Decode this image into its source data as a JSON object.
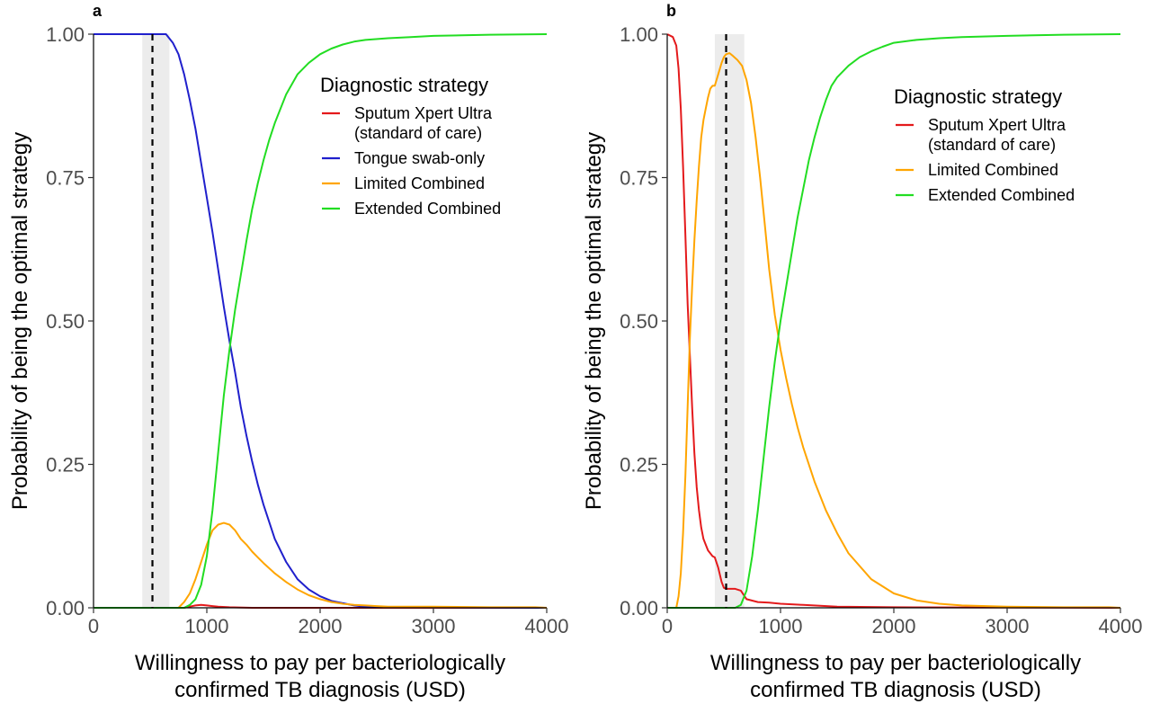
{
  "chart_data": [
    {
      "panel_label": "a",
      "type": "line",
      "xlabel": [
        "Willingness to pay per bacteriologically",
        "confirmed TB diagnosis (USD)"
      ],
      "ylabel": "Probability of being the optimal strategy",
      "xlim": [
        0,
        4000
      ],
      "ylim": [
        0,
        1
      ],
      "xticks": [
        0,
        1000,
        2000,
        3000,
        4000
      ],
      "yticks": [
        0,
        0.25,
        0.5,
        0.75,
        1
      ],
      "xtick_labels": [
        "0",
        "1000",
        "2000",
        "3000",
        "4000"
      ],
      "ytick_labels": [
        "0.00",
        "0.25",
        "0.50",
        "0.75",
        "1.00"
      ],
      "grid": false,
      "legend_title": "Diagnostic strategy",
      "legend_position": "right",
      "reference_line": 520,
      "shaded_band": [
        430,
        670
      ],
      "series": [
        {
          "name": "Sputum Xpert Ultra\n(standard of care)",
          "color": "#e41a1c",
          "x": [
            0,
            800,
            850,
            900,
            950,
            1000,
            1050,
            1100,
            1200,
            1400,
            4000
          ],
          "y": [
            0,
            0,
            0.002,
            0.004,
            0.005,
            0.004,
            0.003,
            0.002,
            0.001,
            0,
            0
          ]
        },
        {
          "name": "Tongue swab-only",
          "color": "#2020cc",
          "x": [
            0,
            520,
            640,
            700,
            750,
            800,
            850,
            900,
            950,
            1000,
            1050,
            1100,
            1150,
            1200,
            1250,
            1300,
            1350,
            1400,
            1450,
            1500,
            1550,
            1600,
            1700,
            1800,
            1900,
            2000,
            2100,
            2200,
            2300,
            2400,
            2500,
            4000
          ],
          "y": [
            1,
            1,
            1,
            0.985,
            0.965,
            0.93,
            0.885,
            0.835,
            0.775,
            0.715,
            0.655,
            0.59,
            0.525,
            0.465,
            0.41,
            0.35,
            0.3,
            0.255,
            0.215,
            0.18,
            0.15,
            0.12,
            0.08,
            0.05,
            0.032,
            0.02,
            0.012,
            0.008,
            0.004,
            0.002,
            0.001,
            0
          ]
        },
        {
          "name": "Limited Combined",
          "color": "#ffa500",
          "x": [
            0,
            750,
            800,
            850,
            900,
            950,
            1000,
            1050,
            1100,
            1150,
            1200,
            1250,
            1300,
            1350,
            1400,
            1450,
            1500,
            1600,
            1700,
            1800,
            1900,
            2000,
            2100,
            2200,
            2300,
            2400,
            2500,
            2600,
            3000,
            3500,
            3900,
            4000
          ],
          "y": [
            0,
            0,
            0.01,
            0.025,
            0.05,
            0.08,
            0.11,
            0.135,
            0.145,
            0.148,
            0.145,
            0.135,
            0.12,
            0.11,
            0.098,
            0.088,
            0.078,
            0.06,
            0.045,
            0.032,
            0.022,
            0.015,
            0.01,
            0.007,
            0.005,
            0.004,
            0.003,
            0.002,
            0.002,
            0.001,
            0.001,
            0
          ]
        },
        {
          "name": "Extended Combined",
          "color": "#22dd22",
          "x": [
            0,
            800,
            850,
            900,
            950,
            1000,
            1050,
            1100,
            1150,
            1200,
            1250,
            1300,
            1350,
            1400,
            1450,
            1500,
            1550,
            1600,
            1700,
            1800,
            1900,
            2000,
            2100,
            2200,
            2300,
            2400,
            2600,
            2800,
            3000,
            3500,
            4000
          ],
          "y": [
            0,
            0,
            0.005,
            0.015,
            0.04,
            0.09,
            0.17,
            0.27,
            0.37,
            0.45,
            0.52,
            0.58,
            0.64,
            0.695,
            0.74,
            0.78,
            0.815,
            0.845,
            0.895,
            0.93,
            0.95,
            0.965,
            0.975,
            0.982,
            0.987,
            0.99,
            0.993,
            0.995,
            0.997,
            0.999,
            1
          ]
        }
      ]
    },
    {
      "panel_label": "b",
      "type": "line",
      "xlabel": [
        "Willingness to pay per bacteriologically",
        "confirmed TB diagnosis (USD)"
      ],
      "ylabel": "Probability of being the optimal strategy",
      "xlim": [
        0,
        4000
      ],
      "ylim": [
        0,
        1
      ],
      "xticks": [
        0,
        1000,
        2000,
        3000,
        4000
      ],
      "yticks": [
        0,
        0.25,
        0.5,
        0.75,
        1
      ],
      "xtick_labels": [
        "0",
        "1000",
        "2000",
        "3000",
        "4000"
      ],
      "ytick_labels": [
        "0.00",
        "0.25",
        "0.50",
        "0.75",
        "1.00"
      ],
      "grid": false,
      "legend_title": "Diagnostic strategy",
      "legend_position": "right",
      "reference_line": 520,
      "shaded_band": [
        420,
        680
      ],
      "series": [
        {
          "name": "Sputum Xpert Ultra\n(standard of care)",
          "color": "#e41a1c",
          "x": [
            0,
            50,
            80,
            100,
            120,
            140,
            160,
            180,
            200,
            220,
            240,
            260,
            280,
            300,
            320,
            340,
            360,
            380,
            400,
            420,
            450,
            480,
            500,
            520,
            600,
            650,
            700,
            800,
            900,
            1000,
            1200,
            1500,
            2000,
            4000
          ],
          "y": [
            1,
            0.995,
            0.98,
            0.94,
            0.87,
            0.77,
            0.65,
            0.53,
            0.44,
            0.35,
            0.27,
            0.21,
            0.17,
            0.14,
            0.12,
            0.11,
            0.1,
            0.095,
            0.09,
            0.088,
            0.07,
            0.045,
            0.035,
            0.033,
            0.033,
            0.03,
            0.015,
            0.01,
            0.009,
            0.007,
            0.005,
            0.002,
            0.001,
            0
          ]
        },
        {
          "name": "Limited Combined",
          "color": "#ffa500",
          "x": [
            0,
            80,
            100,
            120,
            140,
            160,
            180,
            200,
            220,
            240,
            260,
            280,
            300,
            320,
            340,
            360,
            380,
            400,
            420,
            450,
            480,
            500,
            520,
            550,
            580,
            620,
            660,
            700,
            740,
            780,
            820,
            860,
            900,
            950,
            1000,
            1050,
            1100,
            1150,
            1200,
            1300,
            1400,
            1500,
            1600,
            1800,
            2000,
            2200,
            2400,
            2600,
            3000,
            3500,
            3900,
            4000
          ],
          "y": [
            0,
            0,
            0.02,
            0.06,
            0.13,
            0.23,
            0.35,
            0.47,
            0.56,
            0.64,
            0.71,
            0.77,
            0.82,
            0.85,
            0.87,
            0.89,
            0.905,
            0.91,
            0.91,
            0.93,
            0.95,
            0.96,
            0.965,
            0.967,
            0.962,
            0.955,
            0.945,
            0.92,
            0.88,
            0.82,
            0.75,
            0.67,
            0.59,
            0.51,
            0.45,
            0.4,
            0.355,
            0.315,
            0.28,
            0.22,
            0.17,
            0.13,
            0.095,
            0.05,
            0.025,
            0.013,
            0.007,
            0.004,
            0.002,
            0.001,
            0.001,
            0
          ]
        },
        {
          "name": "Extended Combined",
          "color": "#22dd22",
          "x": [
            0,
            600,
            650,
            700,
            750,
            800,
            850,
            900,
            950,
            1000,
            1050,
            1100,
            1150,
            1200,
            1250,
            1300,
            1350,
            1400,
            1450,
            1500,
            1600,
            1700,
            1800,
            1900,
            2000,
            2200,
            2400,
            2600,
            3000,
            3500,
            4000
          ],
          "y": [
            0,
            0,
            0.005,
            0.03,
            0.09,
            0.17,
            0.26,
            0.35,
            0.43,
            0.5,
            0.56,
            0.62,
            0.68,
            0.73,
            0.78,
            0.82,
            0.855,
            0.885,
            0.91,
            0.925,
            0.945,
            0.96,
            0.97,
            0.978,
            0.985,
            0.99,
            0.993,
            0.995,
            0.997,
            0.999,
            1
          ]
        }
      ]
    }
  ]
}
